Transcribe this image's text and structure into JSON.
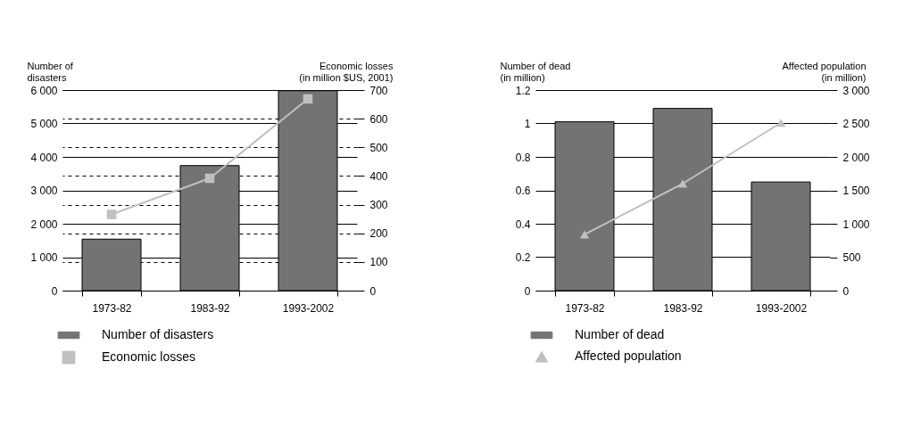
{
  "chart_data": [
    {
      "type": "bar",
      "categories": [
        "1973-82",
        "1983-92",
        "1993-2002"
      ],
      "ylabel": "Number of\ndisasters",
      "y2label": "Economic losses\n(in million $US, 2001)",
      "series": [
        {
          "name": "Number of disasters",
          "color": "#737373",
          "values": [
            1540,
            3740,
            5980
          ]
        },
        {
          "name": "Economic losses",
          "color": "#c0c0c0",
          "type": "line",
          "axis": "y2",
          "marker": "square",
          "values": [
            266,
            392,
            669
          ]
        }
      ],
      "ylim": [
        0,
        6000
      ],
      "yticks": [
        0,
        {
          "value": 1000,
          "label": "1 000"
        },
        {
          "value": 2000,
          "label": "2 000"
        },
        {
          "value": 3000,
          "label": "3 000"
        },
        {
          "value": 4000,
          "label": "4 000"
        },
        {
          "value": 5000,
          "label": "5 000"
        },
        {
          "value": 6000,
          "label": "6 000"
        }
      ],
      "y2lim": [
        0,
        700
      ],
      "y2ticks": [
        0,
        100,
        200,
        300,
        400,
        500,
        600,
        700
      ],
      "grid": true,
      "legend": "bottom"
    },
    {
      "type": "bar",
      "categories": [
        "1973-82",
        "1983-92",
        "1993-2002"
      ],
      "ylabel": "Number of dead\n(in million)",
      "y2label": "Affected population\n(in million)",
      "series": [
        {
          "name": "Number of dead",
          "color": "#737373",
          "values": [
            1.01,
            1.09,
            0.65
          ]
        },
        {
          "name": "Affected population",
          "color": "#c0c0c0",
          "type": "line",
          "axis": "y2",
          "marker": "triangle",
          "values": [
            840,
            1600,
            2510
          ]
        }
      ],
      "ylim": [
        0,
        1.2
      ],
      "yticks": [
        0,
        0.2,
        0.4,
        0.6,
        0.8,
        1,
        1.2
      ],
      "y2lim": [
        0,
        3000
      ],
      "y2ticks": [
        0,
        500,
        {
          "value": 1000,
          "label": "1 000"
        },
        {
          "value": 1500,
          "label": "1 500"
        },
        {
          "value": 2000,
          "label": "2 000"
        },
        {
          "value": 2500,
          "label": "2 500"
        },
        {
          "value": 3000,
          "label": "3 000"
        }
      ],
      "grid": "y",
      "legend": "bottom"
    }
  ]
}
